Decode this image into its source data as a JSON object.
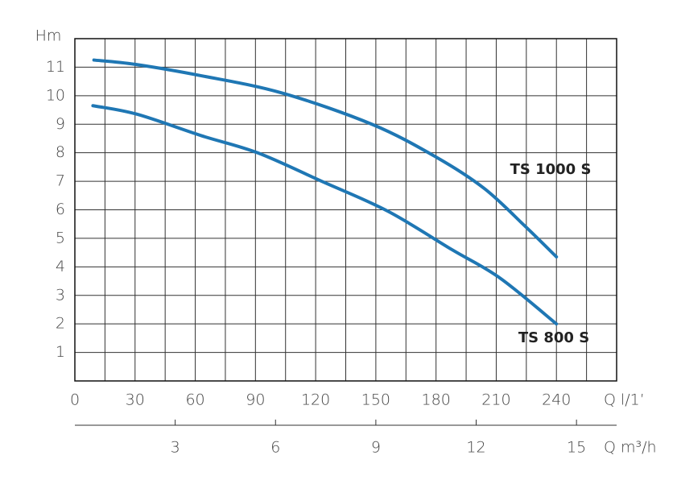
{
  "chart_data": {
    "type": "line",
    "y_label": "Hm",
    "x_label": "Q l/1’",
    "x2_label": "Q m³/h",
    "xlim": [
      0,
      270
    ],
    "xticks": [
      0,
      30,
      60,
      90,
      120,
      150,
      180,
      210,
      240
    ],
    "xgrid": [
      0,
      15,
      30,
      45,
      60,
      75,
      90,
      105,
      120,
      135,
      150,
      165,
      180,
      195,
      210,
      225,
      240,
      255,
      270
    ],
    "x2lim": [
      0,
      16.2
    ],
    "x2ticks": [
      3,
      6,
      9,
      12,
      15
    ],
    "ylim": [
      0,
      12
    ],
    "yticks": [
      1,
      2,
      3,
      4,
      5,
      6,
      7,
      8,
      9,
      10,
      11
    ],
    "ygrid": [
      0,
      1,
      2,
      3,
      4,
      5,
      6,
      7,
      8,
      9,
      10,
      11,
      12
    ],
    "grid": true,
    "series": [
      {
        "name": "TS 1000 S",
        "color": "#1f77b4",
        "x": [
          9.5,
          30,
          63,
          103,
          148,
          180,
          204,
          224,
          240
        ],
        "values": [
          11.25,
          11.1,
          10.7,
          10.1,
          9.0,
          7.85,
          6.75,
          5.45,
          4.35
        ]
      },
      {
        "name": "TS 800 S",
        "color": "#1f77b4",
        "x": [
          9,
          31,
          63,
          91,
          123,
          156,
          188,
          212,
          240
        ],
        "values": [
          9.65,
          9.35,
          8.6,
          8.0,
          7.0,
          5.95,
          4.6,
          3.6,
          2.0
        ]
      }
    ]
  }
}
